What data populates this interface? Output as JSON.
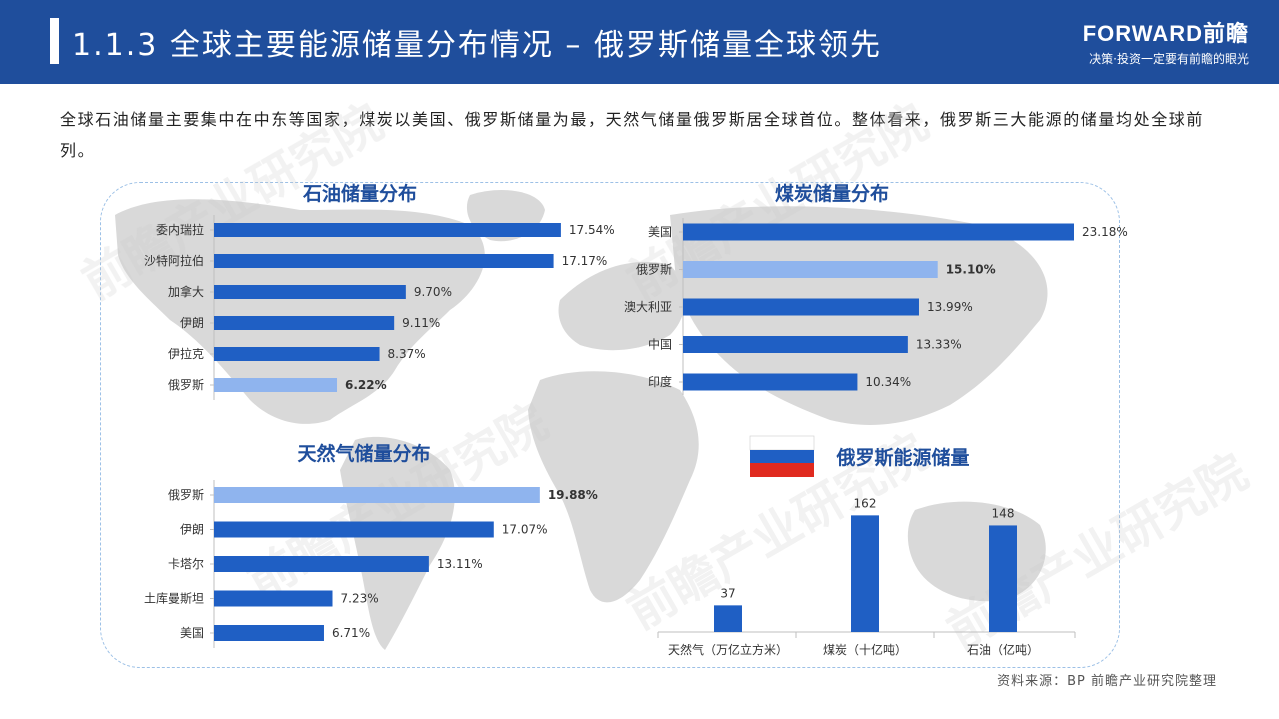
{
  "header": {
    "title": "1.1.3 全球主要能源储量分布情况 – 俄罗斯储量全球领先",
    "logo_name": "FORWARD前瞻",
    "logo_tagline": "决策·投资一定要有前瞻的眼光"
  },
  "intro": "全球石油储量主要集中在中东等国家，煤炭以美国、俄罗斯储量为最，天然气储量俄罗斯居全球首位。整体看来，俄罗斯三大能源的储量均处全球前列。",
  "watermark": "前瞻产业研究院",
  "source": "资料来源：BP 前瞻产业研究院整理",
  "colors": {
    "header_bg": "#1f4e9c",
    "bar": "#1f5fc4",
    "bar_highlight": "#8fb4ee",
    "title": "#1f4e9c",
    "map": "#d9d9d9"
  },
  "chart_data": [
    {
      "type": "bar",
      "orientation": "horizontal",
      "title": "石油储量分布",
      "categories": [
        "委内瑞拉",
        "沙特阿拉伯",
        "加拿大",
        "伊朗",
        "伊拉克",
        "俄罗斯"
      ],
      "values": [
        17.54,
        17.17,
        9.7,
        9.11,
        8.37,
        6.22
      ],
      "labels": [
        "17.54%",
        "17.17%",
        "9.70%",
        "9.11%",
        "8.37%",
        "6.22%"
      ],
      "highlight": "俄罗斯",
      "xlim": [
        0,
        18
      ]
    },
    {
      "type": "bar",
      "orientation": "horizontal",
      "title": "煤炭储量分布",
      "categories": [
        "美国",
        "俄罗斯",
        "澳大利亚",
        "中国",
        "印度"
      ],
      "values": [
        23.18,
        15.1,
        13.99,
        13.33,
        10.34
      ],
      "labels": [
        "23.18%",
        "15.10%",
        "13.99%",
        "13.33%",
        "10.34%"
      ],
      "highlight": "俄罗斯",
      "xlim": [
        0,
        23.18
      ]
    },
    {
      "type": "bar",
      "orientation": "horizontal",
      "title": "天然气储量分布",
      "categories": [
        "俄罗斯",
        "伊朗",
        "卡塔尔",
        "土库曼斯坦",
        "美国"
      ],
      "values": [
        19.88,
        17.07,
        13.11,
        7.23,
        6.71
      ],
      "labels": [
        "19.88%",
        "17.07%",
        "13.11%",
        "7.23%",
        "6.71%"
      ],
      "highlight": "俄罗斯",
      "xlim": [
        0,
        20.5
      ]
    },
    {
      "type": "bar",
      "orientation": "vertical",
      "title": "俄罗斯能源储量",
      "categories": [
        "天然气（万亿立方米）",
        "煤炭（十亿吨）",
        "石油（亿吨）"
      ],
      "values": [
        37,
        162,
        148
      ],
      "labels": [
        "37",
        "162",
        "148"
      ],
      "ylim": [
        0,
        175
      ]
    }
  ]
}
